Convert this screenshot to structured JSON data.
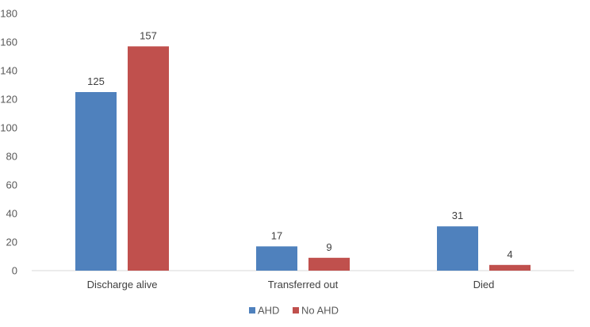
{
  "chart_data": {
    "type": "bar",
    "categories": [
      "Discharge alive",
      "Transferred out",
      "Died"
    ],
    "series": [
      {
        "name": "AHD",
        "values": [
          125,
          17,
          31
        ],
        "color": "#4f81bd"
      },
      {
        "name": "No AHD",
        "values": [
          157,
          9,
          4
        ],
        "color": "#c0504d"
      }
    ],
    "title": "",
    "xlabel": "",
    "ylabel": "",
    "ylim": [
      0,
      180
    ],
    "yticks": [
      0,
      20,
      40,
      60,
      80,
      100,
      120,
      140,
      160,
      180
    ],
    "grid": false,
    "legend_position": "bottom",
    "data_labels": true
  }
}
